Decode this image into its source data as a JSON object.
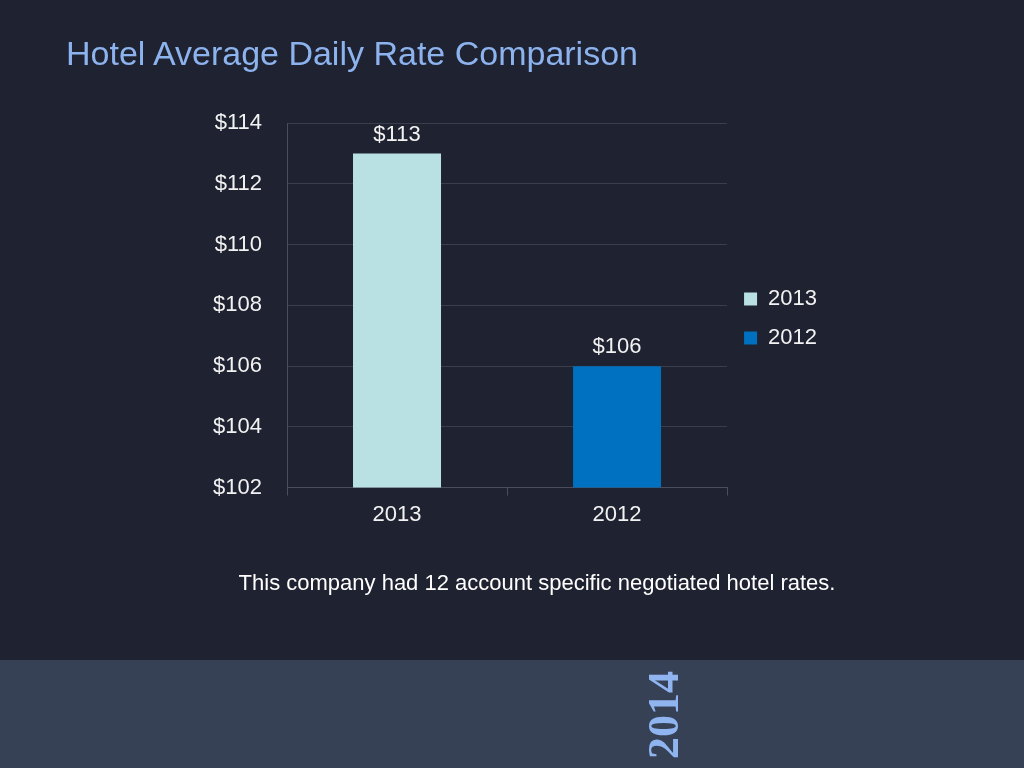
{
  "chart_data": {
    "type": "bar",
    "title": "Hotel Average Daily Rate Comparison",
    "categories": [
      "2013",
      "2012"
    ],
    "series": [
      {
        "name": "2013",
        "color": "#b9e0e3",
        "values": [
          113,
          null
        ],
        "value_labels": [
          "$113",
          null
        ]
      },
      {
        "name": "2012",
        "color": "#0070c0",
        "values": [
          null,
          106
        ],
        "value_labels": [
          null,
          "$106"
        ]
      }
    ],
    "ylim": [
      102,
      114
    ],
    "yticks": [
      {
        "value": 102,
        "label": "$102"
      },
      {
        "value": 104,
        "label": "$104"
      },
      {
        "value": 106,
        "label": "$106"
      },
      {
        "value": 108,
        "label": "$108"
      },
      {
        "value": 110,
        "label": "$110"
      },
      {
        "value": 112,
        "label": "$112"
      },
      {
        "value": 114,
        "label": "$114"
      }
    ],
    "grid": "y",
    "legend": "right",
    "annotations": [
      "This company had 12 account specific negotiated hotel rates.",
      "2014"
    ]
  }
}
